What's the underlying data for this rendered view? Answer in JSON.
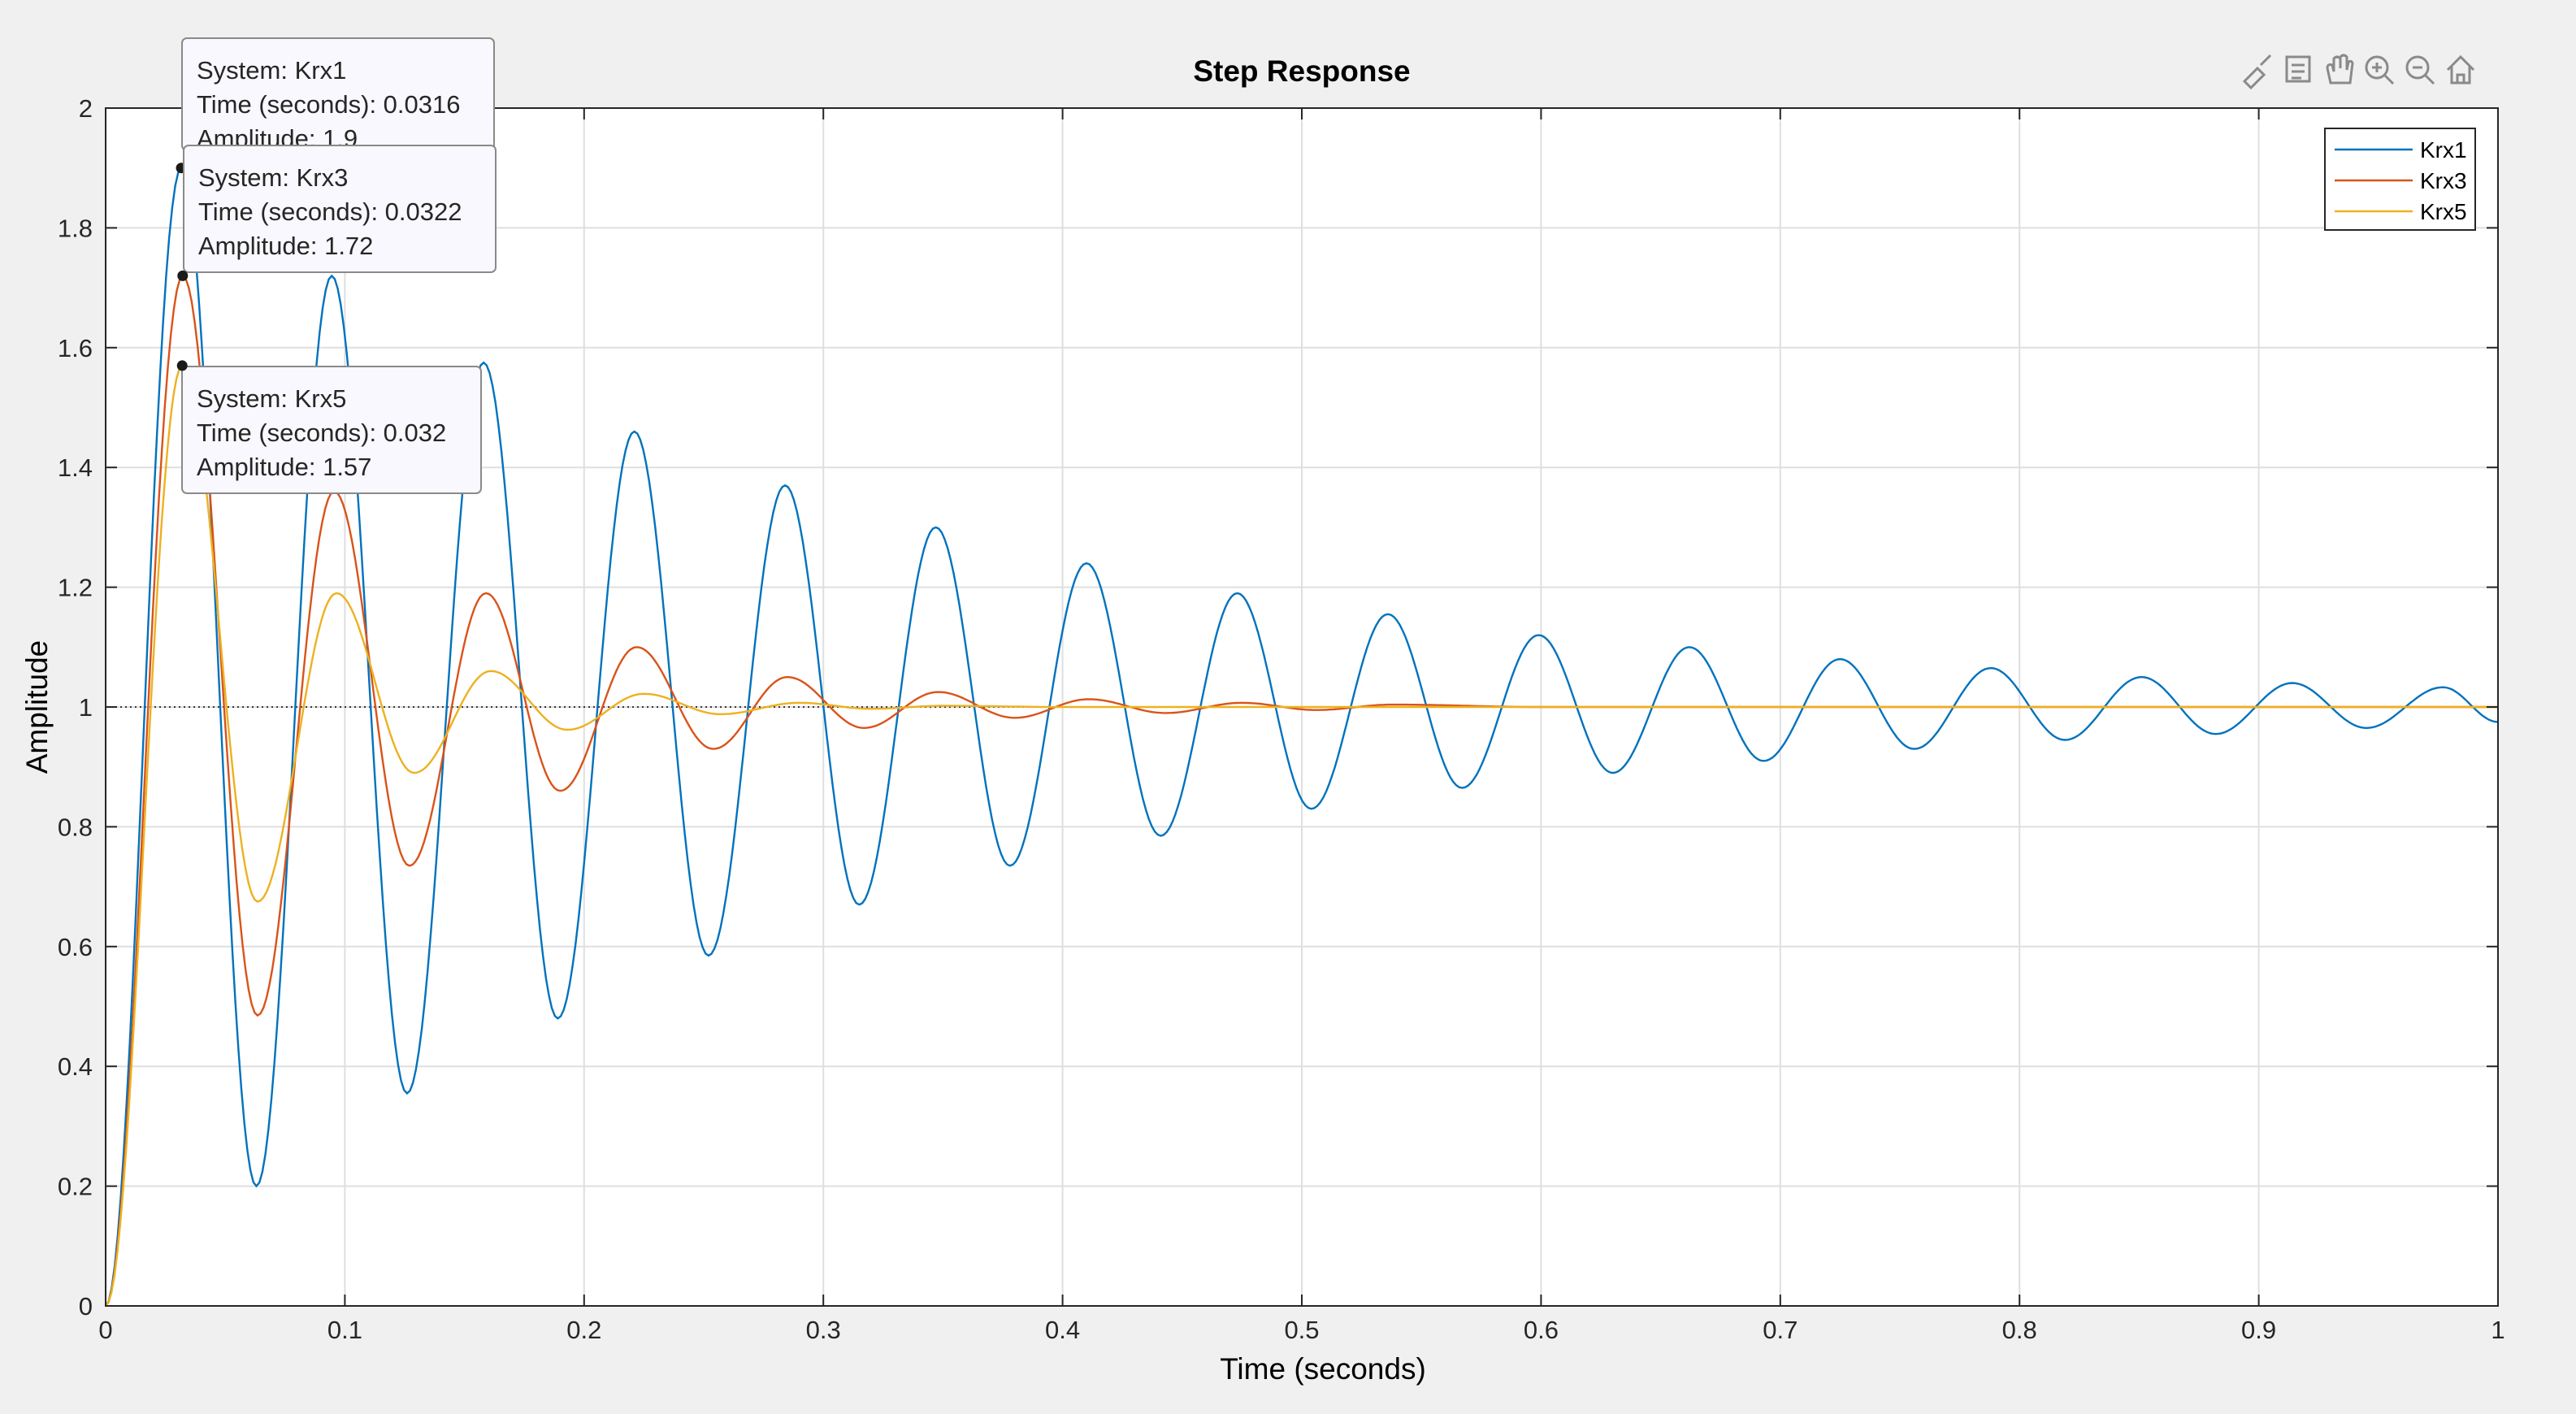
{
  "figure": {
    "toolbar": [
      {
        "name": "brush-icon",
        "label": "Brush"
      },
      {
        "name": "datatip-icon",
        "label": "Data Tips"
      },
      {
        "name": "pan-icon",
        "label": "Pan"
      },
      {
        "name": "zoom-in-icon",
        "label": "Zoom In"
      },
      {
        "name": "zoom-out-icon",
        "label": "Zoom Out"
      },
      {
        "name": "home-icon",
        "label": "Restore View"
      }
    ]
  },
  "chart_data": {
    "type": "line",
    "title": "Step Response",
    "xlabel": "Time (seconds)",
    "ylabel": "Amplitude",
    "xlim": [
      0,
      1
    ],
    "ylim": [
      0,
      2
    ],
    "xticks": [
      0,
      0.1,
      0.2,
      0.3,
      0.4,
      0.5,
      0.6,
      0.7,
      0.8,
      0.9,
      1
    ],
    "xtick_labels": [
      "0",
      "0.1",
      "0.2",
      "0.3",
      "0.4",
      "0.5",
      "0.6",
      "0.7",
      "0.8",
      "0.9",
      "1"
    ],
    "yticks": [
      0,
      0.2,
      0.4,
      0.6,
      0.8,
      1,
      1.2,
      1.4,
      1.6,
      1.8,
      2
    ],
    "ytick_labels": [
      "0",
      "0.2",
      "0.4",
      "0.6",
      "0.8",
      "1",
      "1.2",
      "1.4",
      "1.6",
      "1.8",
      "2"
    ],
    "grid": true,
    "legend_position": "top-right",
    "reference_line": {
      "y": 1,
      "style": "dotted",
      "color": "#000000"
    },
    "series": [
      {
        "name": "Krx1",
        "color": "#0072BD",
        "overshoot": 0.9,
        "peak_time": 0.0316,
        "points": [
          [
            0,
            0
          ],
          [
            0.0316,
            1.9
          ],
          [
            0.063,
            0.2
          ],
          [
            0.0945,
            1.72
          ],
          [
            0.126,
            0.355
          ],
          [
            0.158,
            1.575
          ],
          [
            0.189,
            0.48
          ],
          [
            0.221,
            1.46
          ],
          [
            0.252,
            0.585
          ],
          [
            0.284,
            1.37
          ],
          [
            0.315,
            0.67
          ],
          [
            0.347,
            1.3
          ],
          [
            0.378,
            0.735
          ],
          [
            0.41,
            1.24
          ],
          [
            0.441,
            0.785
          ],
          [
            0.473,
            1.19
          ],
          [
            0.504,
            0.83
          ],
          [
            0.536,
            1.155
          ],
          [
            0.567,
            0.865
          ],
          [
            0.599,
            1.12
          ],
          [
            0.63,
            0.89
          ],
          [
            0.662,
            1.1
          ],
          [
            0.693,
            0.91
          ],
          [
            0.725,
            1.08
          ],
          [
            0.756,
            0.93
          ],
          [
            0.788,
            1.065
          ],
          [
            0.819,
            0.945
          ],
          [
            0.851,
            1.05
          ],
          [
            0.882,
            0.955
          ],
          [
            0.914,
            1.04
          ],
          [
            0.945,
            0.965
          ],
          [
            0.977,
            1.033
          ],
          [
            1,
            0.975
          ]
        ]
      },
      {
        "name": "Krx3",
        "color": "#D95319",
        "overshoot": 0.72,
        "peak_time": 0.0322,
        "points": [
          [
            0,
            0
          ],
          [
            0.0322,
            1.72
          ],
          [
            0.0635,
            0.485
          ],
          [
            0.0955,
            1.36
          ],
          [
            0.127,
            0.735
          ],
          [
            0.159,
            1.19
          ],
          [
            0.19,
            0.86
          ],
          [
            0.222,
            1.1
          ],
          [
            0.254,
            0.93
          ],
          [
            0.285,
            1.05
          ],
          [
            0.317,
            0.965
          ],
          [
            0.348,
            1.025
          ],
          [
            0.38,
            0.982
          ],
          [
            0.411,
            1.013
          ],
          [
            0.443,
            0.99
          ],
          [
            0.475,
            1.007
          ],
          [
            0.506,
            0.995
          ],
          [
            0.538,
            1.004
          ],
          [
            0.6,
            1.0
          ],
          [
            1,
            1.0
          ]
        ]
      },
      {
        "name": "Krx5",
        "color": "#EDB120",
        "overshoot": 0.57,
        "peak_time": 0.032,
        "points": [
          [
            0,
            0
          ],
          [
            0.032,
            1.57
          ],
          [
            0.0635,
            0.675
          ],
          [
            0.0965,
            1.19
          ],
          [
            0.129,
            0.89
          ],
          [
            0.161,
            1.06
          ],
          [
            0.193,
            0.962
          ],
          [
            0.225,
            1.022
          ],
          [
            0.257,
            0.988
          ],
          [
            0.29,
            1.007
          ],
          [
            0.32,
            0.997
          ],
          [
            0.35,
            1.002
          ],
          [
            0.4,
            1.0
          ],
          [
            1,
            1.0
          ]
        ]
      }
    ],
    "datatips": [
      {
        "series": "Krx1",
        "lines": [
          "System: Krx1",
          "Time (seconds): 0.0316",
          "Amplitude: 1.9"
        ],
        "x": 0.0316,
        "y": 1.9
      },
      {
        "series": "Krx3",
        "lines": [
          "System: Krx3",
          "Time (seconds): 0.0322",
          "Amplitude: 1.72"
        ],
        "x": 0.0322,
        "y": 1.72
      },
      {
        "series": "Krx5",
        "lines": [
          "System: Krx5",
          "Time (seconds): 0.032",
          "Amplitude: 1.57"
        ],
        "x": 0.032,
        "y": 1.57
      }
    ]
  }
}
